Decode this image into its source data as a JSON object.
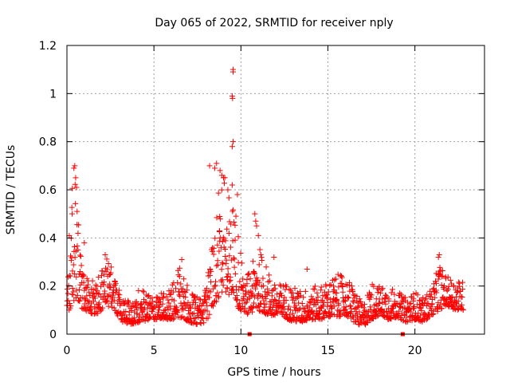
{
  "chart_data": {
    "type": "scatter",
    "title": "Day 065 of 2022, SRMTID for receiver nply",
    "xlabel": "GPS time / hours",
    "ylabel": "SRMTID / TECUs",
    "xlim": [
      0,
      24
    ],
    "ylim": [
      0,
      1.2
    ],
    "xticks": [
      0,
      5,
      10,
      15,
      20
    ],
    "xtick_labels": [
      "0",
      "5",
      "10",
      "15",
      "20"
    ],
    "yticks": [
      0,
      0.2,
      0.4,
      0.6,
      0.8,
      1.0,
      1.2
    ],
    "ytick_labels": [
      "0",
      "0.2",
      "0.4",
      "0.6",
      "0.8",
      "1",
      "1.2"
    ],
    "grid": true,
    "marker": "+",
    "colors": {
      "series": "#ff0000",
      "grid": "#a0a0a0",
      "axis": "#000000"
    },
    "baseline_markers": [
      10.5,
      19.3
    ],
    "series": [
      {
        "name": "SRMTID",
        "envelope": [
          [
            0.0,
            0.08,
            0.25
          ],
          [
            0.15,
            0.1,
            0.45
          ],
          [
            0.3,
            0.12,
            0.65
          ],
          [
            0.5,
            0.15,
            0.7
          ],
          [
            0.7,
            0.12,
            0.4
          ],
          [
            1.0,
            0.1,
            0.3
          ],
          [
            1.5,
            0.08,
            0.22
          ],
          [
            2.0,
            0.09,
            0.28
          ],
          [
            2.3,
            0.12,
            0.33
          ],
          [
            2.7,
            0.1,
            0.25
          ],
          [
            3.2,
            0.05,
            0.14
          ],
          [
            3.6,
            0.04,
            0.14
          ],
          [
            4.2,
            0.05,
            0.2
          ],
          [
            4.8,
            0.06,
            0.16
          ],
          [
            5.5,
            0.06,
            0.18
          ],
          [
            6.0,
            0.06,
            0.2
          ],
          [
            6.6,
            0.07,
            0.3
          ],
          [
            7.0,
            0.05,
            0.18
          ],
          [
            7.5,
            0.04,
            0.16
          ],
          [
            8.0,
            0.05,
            0.2
          ],
          [
            8.3,
            0.1,
            0.35
          ],
          [
            8.7,
            0.15,
            0.6
          ],
          [
            9.0,
            0.18,
            0.7
          ],
          [
            9.3,
            0.15,
            0.62
          ],
          [
            9.6,
            0.15,
            0.6
          ],
          [
            9.9,
            0.1,
            0.4
          ],
          [
            10.2,
            0.08,
            0.22
          ],
          [
            10.7,
            0.09,
            0.3
          ],
          [
            11.0,
            0.1,
            0.38
          ],
          [
            11.5,
            0.08,
            0.28
          ],
          [
            12.0,
            0.07,
            0.2
          ],
          [
            12.5,
            0.07,
            0.22
          ],
          [
            13.0,
            0.05,
            0.2
          ],
          [
            13.5,
            0.05,
            0.18
          ],
          [
            14.0,
            0.06,
            0.2
          ],
          [
            14.5,
            0.06,
            0.2
          ],
          [
            15.0,
            0.07,
            0.22
          ],
          [
            15.5,
            0.07,
            0.25
          ],
          [
            16.0,
            0.08,
            0.24
          ],
          [
            16.5,
            0.05,
            0.2
          ],
          [
            17.0,
            0.03,
            0.12
          ],
          [
            17.5,
            0.06,
            0.22
          ],
          [
            18.0,
            0.08,
            0.2
          ],
          [
            18.5,
            0.06,
            0.2
          ],
          [
            19.0,
            0.07,
            0.18
          ],
          [
            19.5,
            0.05,
            0.15
          ],
          [
            20.0,
            0.06,
            0.18
          ],
          [
            20.5,
            0.05,
            0.15
          ],
          [
            21.0,
            0.08,
            0.2
          ],
          [
            21.4,
            0.1,
            0.3
          ],
          [
            21.8,
            0.12,
            0.24
          ],
          [
            22.3,
            0.1,
            0.23
          ],
          [
            22.8,
            0.1,
            0.22
          ]
        ],
        "spikes": [
          [
            0.4,
            0.69
          ],
          [
            0.45,
            0.7
          ],
          [
            0.5,
            0.65
          ],
          [
            0.55,
            0.61
          ],
          [
            0.3,
            0.5
          ],
          [
            1.0,
            0.38
          ],
          [
            2.2,
            0.33
          ],
          [
            6.6,
            0.31
          ],
          [
            8.2,
            0.7
          ],
          [
            8.5,
            0.69
          ],
          [
            8.6,
            0.71
          ],
          [
            8.8,
            0.68
          ],
          [
            8.9,
            0.66
          ],
          [
            9.0,
            0.65
          ],
          [
            9.25,
            0.6
          ],
          [
            9.5,
            0.62
          ],
          [
            9.55,
            0.8
          ],
          [
            9.5,
            0.78
          ],
          [
            9.5,
            0.99
          ],
          [
            9.52,
            0.98
          ],
          [
            9.55,
            1.09
          ],
          [
            9.55,
            1.1
          ],
          [
            9.8,
            0.58
          ],
          [
            10.8,
            0.5
          ],
          [
            10.85,
            0.47
          ],
          [
            10.9,
            0.45
          ],
          [
            11.0,
            0.41
          ],
          [
            11.9,
            0.32
          ],
          [
            13.8,
            0.27
          ],
          [
            21.4,
            0.33
          ],
          [
            21.35,
            0.32
          ]
        ]
      }
    ]
  }
}
